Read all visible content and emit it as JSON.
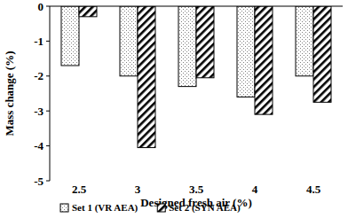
{
  "chart_data": {
    "type": "bar",
    "x_label": "Designed fresh air (%)",
    "y_label": "Mass change (%)",
    "categories": [
      "2.5",
      "3",
      "3.5",
      "4",
      "4.5"
    ],
    "series": [
      {
        "name": "Set 1 (VR AEA)",
        "color": "#7f7f7f",
        "values": [
          -1.7,
          -2.0,
          -2.3,
          -2.6,
          -2.0
        ]
      },
      {
        "name": "Set 2 (SYN AEA)",
        "color": "#000000",
        "values": [
          -0.3,
          -4.05,
          -2.05,
          -3.1,
          -2.75
        ]
      }
    ],
    "ylim": [
      -5,
      0
    ],
    "yticks": [
      0,
      -1,
      -2,
      -3,
      -4,
      -5
    ],
    "legend": "bottom",
    "grid": false
  }
}
